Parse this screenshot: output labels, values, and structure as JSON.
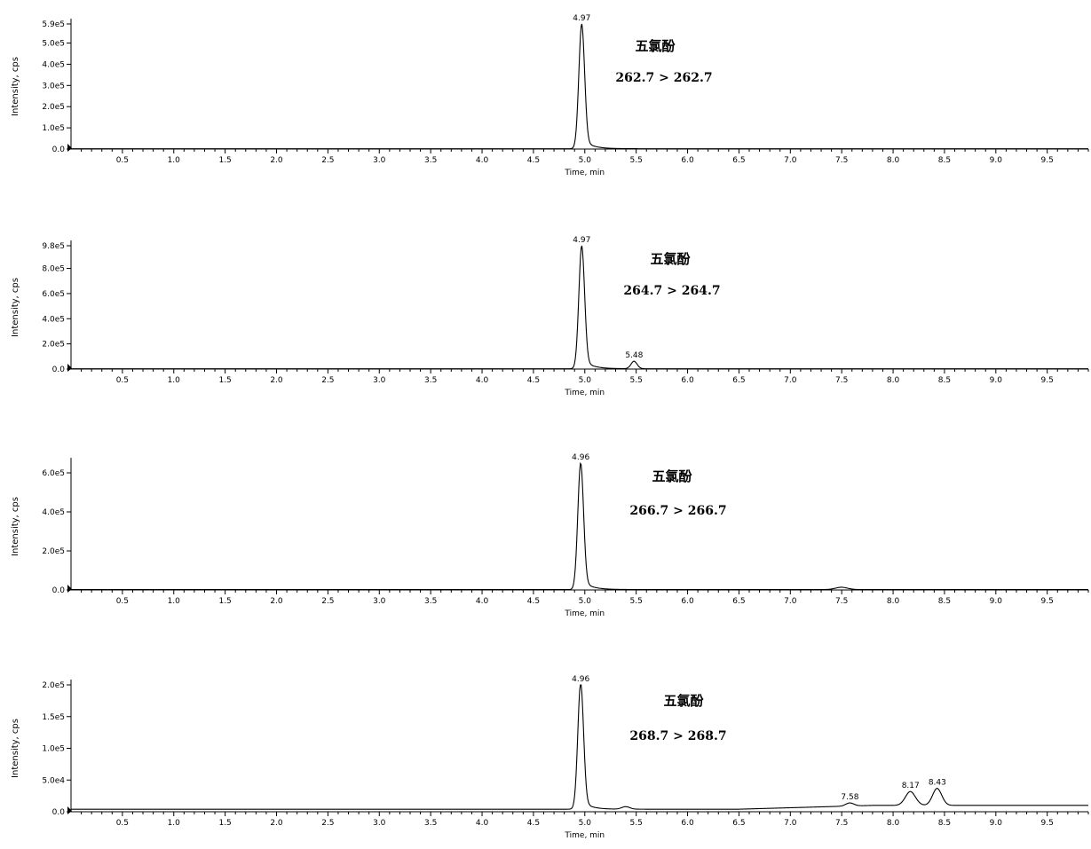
{
  "chart_data": [
    {
      "type": "line",
      "compound": "五氯酚",
      "transition": "262.7 > 262.7",
      "xlabel": "Time, min",
      "ylabel": "Intensity, cps",
      "xlim": [
        0,
        9.9
      ],
      "ylim": [
        0,
        590000
      ],
      "yticks": [
        {
          "v": 0,
          "t": "0.0"
        },
        {
          "v": 100000,
          "t": "1.0e5"
        },
        {
          "v": 200000,
          "t": "2.0e5"
        },
        {
          "v": 300000,
          "t": "3.0e5"
        },
        {
          "v": 400000,
          "t": "4.0e5"
        },
        {
          "v": 500000,
          "t": "5.0e5"
        },
        {
          "v": 590000,
          "t": "5.9e5"
        }
      ],
      "peaks": [
        {
          "x": 4.97,
          "height": 590000,
          "label": "4.97",
          "sigma": 0.028,
          "tail": 0.09
        }
      ],
      "baseline": 1500
    },
    {
      "type": "line",
      "compound": "五氯酚",
      "transition": "264.7 > 264.7",
      "xlabel": "Time, min",
      "ylabel": "Intensity, cps",
      "xlim": [
        0,
        9.9
      ],
      "ylim": [
        0,
        980000
      ],
      "yticks": [
        {
          "v": 0,
          "t": "0.0"
        },
        {
          "v": 200000,
          "t": "2.0e5"
        },
        {
          "v": 400000,
          "t": "4.0e5"
        },
        {
          "v": 600000,
          "t": "6.0e5"
        },
        {
          "v": 800000,
          "t": "8.0e5"
        },
        {
          "v": 980000,
          "t": "9.8e5"
        }
      ],
      "peaks": [
        {
          "x": 4.97,
          "height": 980000,
          "label": "4.97",
          "sigma": 0.028,
          "tail": 0.09
        },
        {
          "x": 5.48,
          "height": 60000,
          "label": "5.48",
          "sigma": 0.03,
          "tail": 0.02
        }
      ],
      "baseline": 2500
    },
    {
      "type": "line",
      "compound": "五氯酚",
      "transition": "266.7 > 266.7",
      "xlabel": "Time, min",
      "ylabel": "Intensity, cps",
      "xlim": [
        0,
        9.9
      ],
      "ylim": [
        0,
        650000
      ],
      "yticks": [
        {
          "v": 0,
          "t": "0.0"
        },
        {
          "v": 200000,
          "t": "2.0e5"
        },
        {
          "v": 400000,
          "t": "4.0e5"
        },
        {
          "v": 600000,
          "t": "6.0e5"
        }
      ],
      "peaks": [
        {
          "x": 4.96,
          "height": 650000,
          "label": "4.96",
          "sigma": 0.028,
          "tail": 0.09
        },
        {
          "x": 7.5,
          "height": 12000,
          "label": "",
          "sigma": 0.06,
          "tail": 0.02
        }
      ],
      "baseline": 2000
    },
    {
      "type": "line",
      "compound": "五氯酚",
      "transition": "268.7 > 268.7",
      "xlabel": "Time, min",
      "ylabel": "Intensity, cps",
      "xlim": [
        0,
        9.9
      ],
      "ylim": [
        0,
        200000
      ],
      "yticks": [
        {
          "v": 0,
          "t": "0.0"
        },
        {
          "v": 50000,
          "t": "5.0e4"
        },
        {
          "v": 100000,
          "t": "1.0e5"
        },
        {
          "v": 150000,
          "t": "1.5e5"
        },
        {
          "v": 200000,
          "t": "2.0e5"
        }
      ],
      "peaks": [
        {
          "x": 4.96,
          "height": 200000,
          "label": "4.96",
          "sigma": 0.028,
          "tail": 0.08
        },
        {
          "x": 5.4,
          "height": 4000,
          "label": "",
          "sigma": 0.04,
          "tail": 0.02
        },
        {
          "x": 7.58,
          "height": 5000,
          "label": "7.58",
          "sigma": 0.04,
          "tail": 0.02
        },
        {
          "x": 8.17,
          "height": 22000,
          "label": "8.17",
          "sigma": 0.05,
          "tail": 0.03
        },
        {
          "x": 8.43,
          "height": 27000,
          "label": "8.43",
          "sigma": 0.045,
          "tail": 0.03
        }
      ],
      "baseline": 4000,
      "baseline_tail": [
        {
          "x": 6.5,
          "y": 7000
        },
        {
          "x": 7.8,
          "y": 10000
        }
      ]
    }
  ],
  "xticks": [
    {
      "v": 0.5,
      "t": "0.5"
    },
    {
      "v": 1.0,
      "t": "1.0"
    },
    {
      "v": 1.5,
      "t": "1.5"
    },
    {
      "v": 2.0,
      "t": "2.0"
    },
    {
      "v": 2.5,
      "t": "2.5"
    },
    {
      "v": 3.0,
      "t": "3.0"
    },
    {
      "v": 3.5,
      "t": "3.5"
    },
    {
      "v": 4.0,
      "t": "4.0"
    },
    {
      "v": 4.5,
      "t": "4.5"
    },
    {
      "v": 5.0,
      "t": "5.0"
    },
    {
      "v": 5.5,
      "t": "5.5"
    },
    {
      "v": 6.0,
      "t": "6.0"
    },
    {
      "v": 6.5,
      "t": "6.5"
    },
    {
      "v": 7.0,
      "t": "7.0"
    },
    {
      "v": 7.5,
      "t": "7.5"
    },
    {
      "v": 8.0,
      "t": "8.0"
    },
    {
      "v": 8.5,
      "t": "8.5"
    },
    {
      "v": 9.0,
      "t": "9.0"
    },
    {
      "v": 9.5,
      "t": "9.5"
    }
  ]
}
